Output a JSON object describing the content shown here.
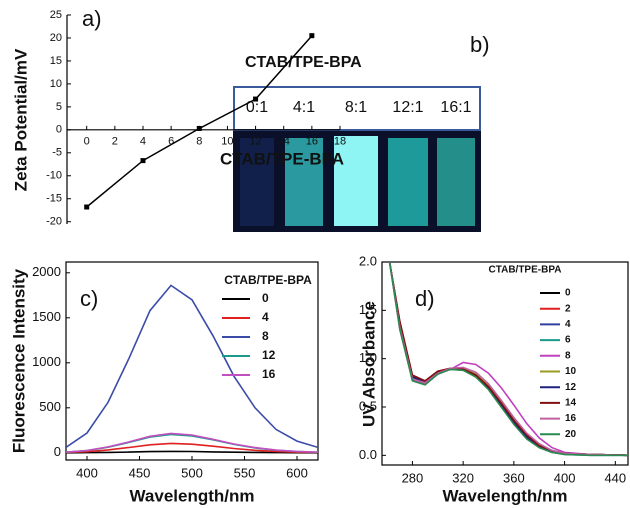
{
  "chart_data": [
    {
      "type": "line",
      "panel_label": "a)",
      "x_label": "CTAB/TPE-BPA",
      "y_label": "Zeta Potential/mV",
      "x": [
        0,
        4,
        8,
        12,
        16
      ],
      "values": [
        -16.8,
        -6.7,
        0.3,
        6.7,
        20.5
      ],
      "color": "#000000",
      "xlim": [
        -1.4,
        18
      ],
      "xticks": [
        0,
        2,
        4,
        6,
        8,
        10,
        12,
        14,
        16,
        18
      ],
      "ylim": [
        -20.5,
        25
      ],
      "yticks": [
        -20,
        -15,
        -10,
        -5,
        0,
        5,
        10,
        15,
        20,
        25
      ]
    },
    {
      "type": "line",
      "panel_label": "c)",
      "x_label": "Wavelength/nm",
      "y_label": "Fluorescence Intensity",
      "legend_title": "CTAB/TPE-BPA",
      "x": [
        380,
        400,
        420,
        440,
        460,
        480,
        500,
        520,
        540,
        560,
        580,
        600,
        620
      ],
      "series": [
        {
          "name": "0",
          "color": "#000000",
          "values": [
            0,
            2,
            5,
            8,
            13,
            15,
            14,
            10,
            7,
            4,
            2,
            1,
            0
          ]
        },
        {
          "name": "4",
          "color": "#e02020",
          "values": [
            3,
            12,
            32,
            59,
            89,
            105,
            96,
            73,
            48,
            28,
            15,
            7,
            3
          ]
        },
        {
          "name": "8",
          "color": "#3b4ba8",
          "values": [
            60,
            220,
            560,
            1050,
            1580,
            1860,
            1700,
            1300,
            850,
            500,
            260,
            130,
            60
          ]
        },
        {
          "name": "12",
          "color": "#1a9a8a",
          "values": [
            7,
            24,
            62,
            116,
            174,
            205,
            187,
            143,
            94,
            55,
            29,
            14,
            7
          ]
        },
        {
          "name": "16",
          "color": "#c050c0",
          "values": [
            7,
            25,
            65,
            121,
            183,
            215,
            197,
            150,
            98,
            58,
            30,
            15,
            7
          ]
        }
      ],
      "xlim": [
        380,
        620
      ],
      "xticks": [
        400,
        450,
        500,
        550,
        600
      ],
      "ylim": [
        -80,
        2120
      ],
      "yticks": [
        0,
        500,
        1000,
        1500,
        2000
      ]
    },
    {
      "type": "line",
      "panel_label": "d)",
      "x_label": "Wavelength/nm",
      "y_label": "UV Absorbance",
      "legend_title": "CTAB/TPE-BPA",
      "x": [
        262,
        270,
        280,
        290,
        300,
        310,
        320,
        330,
        340,
        350,
        360,
        370,
        380,
        390,
        400,
        420,
        450
      ],
      "series": [
        {
          "name": "0",
          "color": "#000000",
          "values": [
            2.0,
            1.36,
            0.8,
            0.76,
            0.86,
            0.9,
            0.89,
            0.83,
            0.7,
            0.52,
            0.34,
            0.19,
            0.09,
            0.04,
            0.02,
            0.01,
            0.0
          ]
        },
        {
          "name": "2",
          "color": "#e02020",
          "values": [
            2.0,
            1.38,
            0.82,
            0.77,
            0.87,
            0.9,
            0.89,
            0.82,
            0.69,
            0.51,
            0.33,
            0.18,
            0.09,
            0.04,
            0.02,
            0.01,
            0.0
          ]
        },
        {
          "name": "4",
          "color": "#3040a0",
          "values": [
            2.0,
            1.34,
            0.79,
            0.75,
            0.85,
            0.89,
            0.89,
            0.83,
            0.71,
            0.53,
            0.35,
            0.2,
            0.1,
            0.05,
            0.02,
            0.01,
            0.0
          ]
        },
        {
          "name": "6",
          "color": "#1a9a8a",
          "values": [
            2.0,
            1.32,
            0.78,
            0.74,
            0.85,
            0.89,
            0.88,
            0.82,
            0.69,
            0.51,
            0.33,
            0.18,
            0.08,
            0.03,
            0.01,
            0.0,
            0.0
          ]
        },
        {
          "name": "8",
          "color": "#c040c0",
          "values": [
            2.0,
            1.3,
            0.78,
            0.74,
            0.84,
            0.89,
            0.96,
            0.94,
            0.85,
            0.7,
            0.52,
            0.33,
            0.18,
            0.08,
            0.03,
            0.01,
            0.0
          ]
        },
        {
          "name": "10",
          "color": "#9a9a20",
          "values": [
            2.0,
            1.35,
            0.8,
            0.75,
            0.86,
            0.9,
            0.9,
            0.84,
            0.72,
            0.55,
            0.37,
            0.21,
            0.11,
            0.05,
            0.02,
            0.01,
            0.0
          ]
        },
        {
          "name": "12",
          "color": "#202080",
          "values": [
            2.0,
            1.37,
            0.81,
            0.76,
            0.86,
            0.9,
            0.89,
            0.83,
            0.7,
            0.52,
            0.34,
            0.19,
            0.09,
            0.04,
            0.02,
            0.01,
            0.0
          ]
        },
        {
          "name": "14",
          "color": "#801010",
          "values": [
            2.0,
            1.39,
            0.83,
            0.77,
            0.87,
            0.9,
            0.89,
            0.83,
            0.71,
            0.54,
            0.36,
            0.21,
            0.1,
            0.05,
            0.02,
            0.01,
            0.0
          ]
        },
        {
          "name": "16",
          "color": "#c060a0",
          "values": [
            2.0,
            1.33,
            0.79,
            0.75,
            0.85,
            0.9,
            0.91,
            0.86,
            0.74,
            0.57,
            0.39,
            0.23,
            0.12,
            0.05,
            0.02,
            0.01,
            0.0
          ]
        },
        {
          "name": "20",
          "color": "#2a8a50",
          "values": [
            2.0,
            1.31,
            0.77,
            0.73,
            0.84,
            0.89,
            0.88,
            0.81,
            0.68,
            0.5,
            0.32,
            0.17,
            0.08,
            0.03,
            0.01,
            0.0,
            0.0
          ]
        }
      ],
      "xlim": [
        256,
        450
      ],
      "xticks": [
        280,
        320,
        360,
        400,
        440
      ],
      "ylim": [
        -0.1,
        2.0
      ],
      "yticks": [
        {
          "value": 0,
          "label": "0.0"
        },
        0.5,
        {
          "value": 1,
          "label": "1.0"
        },
        1.5,
        {
          "value": 2,
          "label": "2.0"
        }
      ]
    }
  ],
  "photo": {
    "panel_label": "b)",
    "title": "CTAB/TPE-BPA",
    "labels": [
      "0:1",
      "4:1",
      "8:1",
      "12:1",
      "16:1"
    ]
  }
}
